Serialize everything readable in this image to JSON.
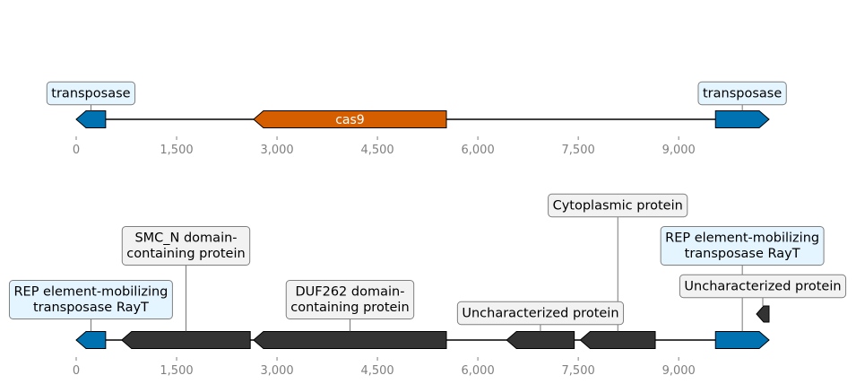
{
  "colors": {
    "transposase": "#0072b2",
    "cas9": "#d55e00",
    "other": "#333333",
    "label_bg_transposase": "#e5f5ff",
    "label_bg_other": "#f2f2f2",
    "axis_text": "#808080"
  },
  "axis": {
    "ticks": [
      {
        "value": 0,
        "label": "0"
      },
      {
        "value": 1500,
        "label": "1,500"
      },
      {
        "value": 3000,
        "label": "3,000"
      },
      {
        "value": 4500,
        "label": "4,500"
      },
      {
        "value": 6000,
        "label": "6,000"
      },
      {
        "value": 7500,
        "label": "7,500"
      },
      {
        "value": 9000,
        "label": "9,000"
      }
    ]
  },
  "tracks": [
    {
      "name": "track-1",
      "length": 10350,
      "genes": [
        {
          "start": 0,
          "end": 440,
          "strand": -1,
          "type": "transposase",
          "label": "transposase"
        },
        {
          "start": 2650,
          "end": 5530,
          "strand": -1,
          "type": "cas9",
          "label": "cas9",
          "label_inside": true
        },
        {
          "start": 9550,
          "end": 10350,
          "strand": 1,
          "type": "transposase",
          "label": "transposase"
        }
      ]
    },
    {
      "name": "track-2",
      "length": 10350,
      "genes": [
        {
          "start": 0,
          "end": 440,
          "strand": -1,
          "type": "transposase",
          "label": "REP element-mobilizing\ntransposase RayT",
          "level": 1
        },
        {
          "start": 680,
          "end": 2600,
          "strand": -1,
          "type": "other",
          "label": "SMC_N domain-\ncontaining protein",
          "level": 3
        },
        {
          "start": 2650,
          "end": 5530,
          "strand": -1,
          "type": "other",
          "label": "DUF262 domain-\ncontaining protein",
          "level": 1
        },
        {
          "start": 6430,
          "end": 7440,
          "strand": -1,
          "type": "other",
          "label": "Uncharacterized protein",
          "level": 0
        },
        {
          "start": 7530,
          "end": 8650,
          "strand": -1,
          "type": "other",
          "label": "Cytoplasmic protein",
          "level": 4
        },
        {
          "start": 9550,
          "end": 10350,
          "strand": 1,
          "type": "transposase",
          "label": "REP element-mobilizing\ntransposase RayT",
          "level": 3
        },
        {
          "start": 10160,
          "end": 10350,
          "strand": -1,
          "type": "other",
          "label": "Uncharacterized protein",
          "level": 2,
          "offset_row": true
        }
      ]
    }
  ]
}
